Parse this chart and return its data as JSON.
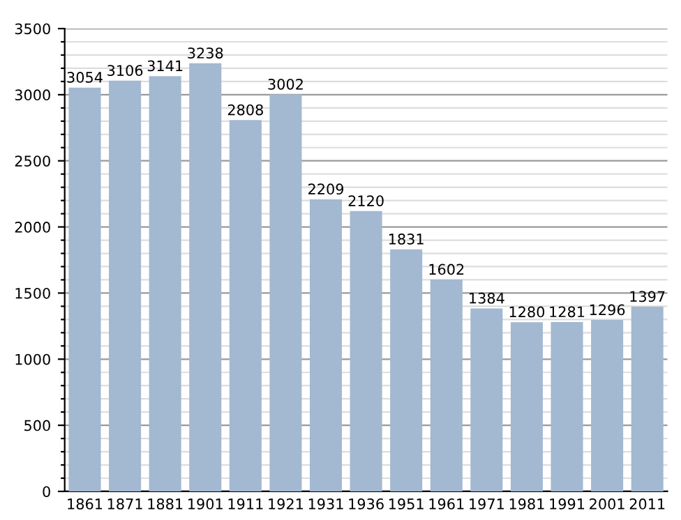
{
  "chart_data": {
    "type": "bar",
    "categories": [
      "1861",
      "1871",
      "1881",
      "1901",
      "1911",
      "1921",
      "1931",
      "1936",
      "1951",
      "1961",
      "1971",
      "1981",
      "1991",
      "2001",
      "2011"
    ],
    "values": [
      3054,
      3106,
      3141,
      3238,
      2808,
      3002,
      2209,
      2120,
      1831,
      1602,
      1384,
      1280,
      1281,
      1296,
      1397
    ],
    "color": "#a3b8d1",
    "ylim": [
      0,
      3500
    ],
    "yticks": [
      0,
      {
        "value": 100,
        "label": null
      },
      {
        "value": 200,
        "label": null
      },
      {
        "value": 300,
        "label": null
      },
      {
        "value": 400,
        "label": null
      },
      500,
      {
        "value": 600,
        "label": null
      },
      {
        "value": 700,
        "label": null
      },
      {
        "value": 800,
        "label": null
      },
      {
        "value": 900,
        "label": null
      },
      1000,
      {
        "value": 1100,
        "label": null
      },
      {
        "value": 1200,
        "label": null
      },
      {
        "value": 1300,
        "label": null
      },
      {
        "value": 1400,
        "label": null
      },
      1500,
      {
        "value": 1600,
        "label": null
      },
      {
        "value": 1700,
        "label": null
      },
      {
        "value": 1800,
        "label": null
      },
      {
        "value": 1900,
        "label": null
      },
      2000,
      {
        "value": 2100,
        "label": null
      },
      {
        "value": 2200,
        "label": null
      },
      {
        "value": 2300,
        "label": null
      },
      {
        "value": 2400,
        "label": null
      },
      2500,
      {
        "value": 2600,
        "label": null
      },
      {
        "value": 2700,
        "label": null
      },
      {
        "value": 2800,
        "label": null
      },
      {
        "value": 2900,
        "label": null
      },
      3000,
      {
        "value": 3100,
        "label": null
      },
      {
        "value": 3200,
        "label": null
      },
      {
        "value": 3300,
        "label": null
      },
      {
        "value": 3400,
        "label": null
      },
      3500
    ],
    "grid": "y",
    "data_labels": true
  }
}
